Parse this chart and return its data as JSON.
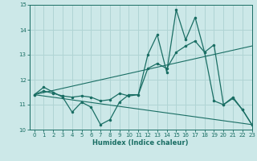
{
  "xlabel": "Humidex (Indice chaleur)",
  "ylabel": "",
  "xlim": [
    -0.5,
    23
  ],
  "ylim": [
    10,
    15
  ],
  "yticks": [
    10,
    11,
    12,
    13,
    14,
    15
  ],
  "xticks": [
    0,
    1,
    2,
    3,
    4,
    5,
    6,
    7,
    8,
    9,
    10,
    11,
    12,
    13,
    14,
    15,
    16,
    17,
    18,
    19,
    20,
    21,
    22,
    23
  ],
  "bg_color": "#cce8e8",
  "grid_color": "#b0d4d4",
  "line_color": "#1a6e64",
  "line1_x": [
    0,
    1,
    2,
    3,
    4,
    5,
    6,
    7,
    8,
    9,
    10,
    11,
    12,
    13,
    14,
    15,
    16,
    17,
    18,
    19,
    20,
    21,
    22,
    23
  ],
  "line1_y": [
    11.4,
    11.7,
    11.5,
    11.3,
    10.7,
    11.1,
    10.9,
    10.2,
    10.4,
    11.1,
    11.4,
    11.4,
    13.0,
    13.8,
    12.3,
    14.8,
    13.6,
    14.5,
    13.1,
    13.4,
    11.0,
    11.3,
    10.8,
    10.2
  ],
  "line2_x": [
    0,
    1,
    2,
    3,
    4,
    5,
    6,
    7,
    8,
    9,
    10,
    11,
    12,
    13,
    14,
    15,
    16,
    17,
    18,
    19,
    20,
    21,
    22,
    23
  ],
  "line2_y": [
    11.4,
    11.55,
    11.45,
    11.35,
    11.3,
    11.35,
    11.3,
    11.15,
    11.2,
    11.45,
    11.35,
    11.4,
    12.45,
    12.65,
    12.45,
    13.1,
    13.35,
    13.55,
    13.1,
    11.15,
    11.0,
    11.25,
    10.8,
    10.2
  ],
  "line3_x": [
    0,
    23
  ],
  "line3_y": [
    11.4,
    10.2
  ],
  "line4_x": [
    0,
    23
  ],
  "line4_y": [
    11.4,
    13.35
  ]
}
